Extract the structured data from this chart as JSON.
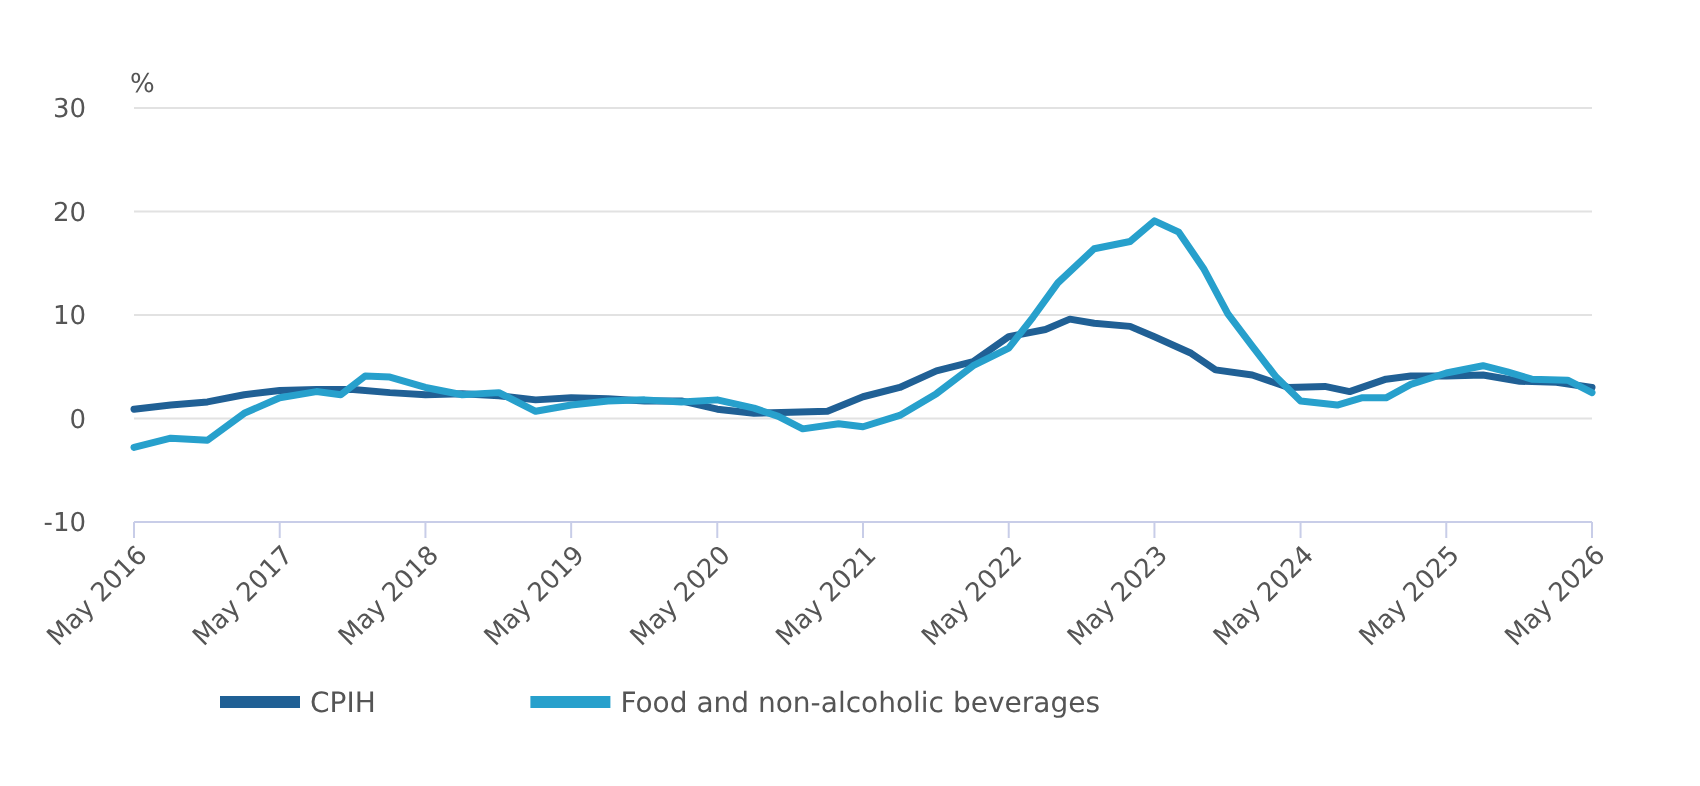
{
  "chart_data": {
    "type": "line",
    "ylabel": "%",
    "ylim": [
      -10,
      30
    ],
    "yticks": [
      -10,
      0,
      10,
      20,
      30
    ],
    "xlim": [
      "2016-05",
      "2026-05"
    ],
    "xticks": [
      {
        "value": "2016-05",
        "label": "May 2016"
      },
      {
        "value": "2017-05",
        "label": "May 2017"
      },
      {
        "value": "2018-05",
        "label": "May 2018"
      },
      {
        "value": "2019-05",
        "label": "May 2019"
      },
      {
        "value": "2020-05",
        "label": "May 2020"
      },
      {
        "value": "2021-05",
        "label": "May 2021"
      },
      {
        "value": "2022-05",
        "label": "May 2022"
      },
      {
        "value": "2023-05",
        "label": "May 2023"
      },
      {
        "value": "2024-05",
        "label": "May 2024"
      },
      {
        "value": "2025-05",
        "label": "May 2025"
      },
      {
        "value": "2026-05",
        "label": "May 2026"
      }
    ],
    "grid": "y",
    "legend": "bottom",
    "line_style": "solid",
    "marker": "none",
    "series": [
      {
        "name": "CPIH",
        "color": "#206095",
        "x": [
          "2016-05",
          "2016-08",
          "2016-11",
          "2017-02",
          "2017-05",
          "2017-08",
          "2017-11",
          "2018-02",
          "2018-05",
          "2018-08",
          "2018-11",
          "2019-02",
          "2019-05",
          "2019-08",
          "2019-11",
          "2020-02",
          "2020-05",
          "2020-08",
          "2020-11",
          "2021-02",
          "2021-05",
          "2021-08",
          "2021-11",
          "2022-02",
          "2022-05",
          "2022-08",
          "2022-10",
          "2022-12",
          "2023-03",
          "2023-05",
          "2023-08",
          "2023-10",
          "2024-01",
          "2024-04",
          "2024-07",
          "2024-09",
          "2024-12",
          "2025-02",
          "2025-05",
          "2025-08",
          "2025-11",
          "2026-02",
          "2026-05"
        ],
        "values": [
          0.9,
          1.3,
          1.6,
          2.3,
          2.7,
          2.8,
          2.8,
          2.5,
          2.3,
          2.4,
          2.2,
          1.8,
          2.0,
          1.9,
          1.7,
          1.7,
          0.9,
          0.5,
          0.6,
          0.7,
          2.1,
          3.0,
          4.6,
          5.5,
          7.9,
          8.6,
          9.6,
          9.2,
          8.9,
          7.9,
          6.3,
          4.7,
          4.2,
          3.0,
          3.1,
          2.6,
          3.8,
          4.1,
          4.1,
          4.2,
          3.6,
          3.5,
          3.0
        ]
      },
      {
        "name": "Food and non-alcoholic beverages",
        "color": "#27a0cc",
        "x": [
          "2016-05",
          "2016-08",
          "2016-11",
          "2017-02",
          "2017-05",
          "2017-08",
          "2017-10",
          "2017-12",
          "2018-02",
          "2018-05",
          "2018-08",
          "2018-11",
          "2019-02",
          "2019-05",
          "2019-08",
          "2019-11",
          "2020-02",
          "2020-05",
          "2020-08",
          "2020-10",
          "2020-12",
          "2021-03",
          "2021-05",
          "2021-08",
          "2021-11",
          "2022-02",
          "2022-05",
          "2022-07",
          "2022-09",
          "2022-12",
          "2023-03",
          "2023-05",
          "2023-07",
          "2023-09",
          "2023-11",
          "2024-01",
          "2024-03",
          "2024-05",
          "2024-08",
          "2024-10",
          "2024-12",
          "2025-02",
          "2025-05",
          "2025-08",
          "2025-10",
          "2025-12",
          "2026-03",
          "2026-05"
        ],
        "values": [
          -2.8,
          -1.9,
          -2.1,
          0.5,
          2.0,
          2.6,
          2.3,
          4.1,
          4.0,
          3.0,
          2.3,
          2.5,
          0.7,
          1.3,
          1.7,
          1.8,
          1.6,
          1.8,
          1.0,
          0.2,
          -1.0,
          -0.5,
          -0.8,
          0.3,
          2.4,
          5.1,
          6.8,
          9.8,
          13.1,
          16.4,
          17.1,
          19.1,
          18.0,
          14.5,
          10.1,
          7.0,
          4.0,
          1.7,
          1.3,
          2.0,
          2.0,
          3.3,
          4.4,
          5.1,
          4.5,
          3.8,
          3.7,
          2.5
        ]
      }
    ]
  }
}
